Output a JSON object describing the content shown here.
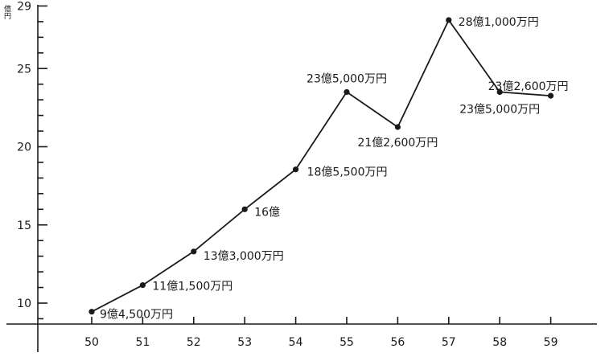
{
  "chart_data": {
    "type": "line",
    "unit_label": "億円",
    "x": [
      "50",
      "51",
      "52",
      "53",
      "54",
      "55",
      "56",
      "57",
      "58",
      "59"
    ],
    "series": [
      {
        "values": [
          9.45,
          11.15,
          13.3,
          16.0,
          18.55,
          23.5,
          21.26,
          28.1,
          23.5,
          23.26
        ],
        "labels": [
          "9億4,500万円",
          "11億1,500万円",
          "13億3,000万円",
          "16億",
          "18億5,500万円",
          "23億5,000万円",
          "21億2,600万円",
          "28億1,000万円",
          "23億5,000万円",
          "23億2,600万円"
        ]
      }
    ],
    "y_ticks": [
      "10",
      "15",
      "20",
      "25",
      "29"
    ],
    "ylim": [
      8.5,
      29
    ],
    "color": "#1a1a1a"
  }
}
